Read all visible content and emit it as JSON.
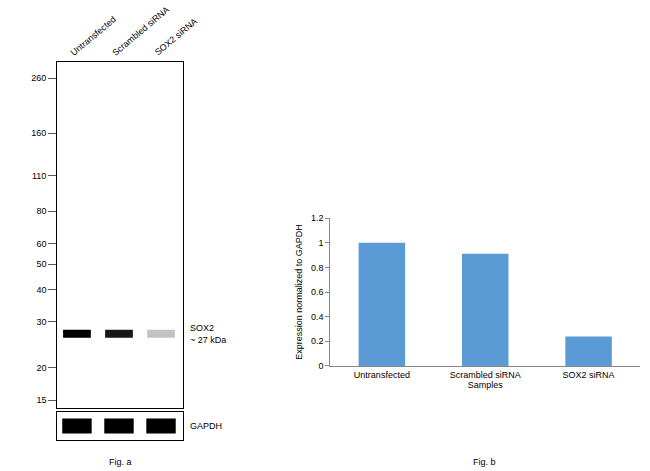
{
  "figure_a": {
    "type": "western_blot",
    "caption": "Fig. a",
    "lanes": [
      "Untransfected",
      "Scrambled siRNA",
      "SOX2 siRNA"
    ],
    "log": "y",
    "ylim": [
      14,
      300
    ],
    "yticks": [
      260,
      160,
      110,
      80,
      60,
      50,
      40,
      30,
      20,
      15
    ],
    "band_kda": 27,
    "band_label": [
      "SOX2",
      "~ 27 kDa"
    ],
    "loading_control": "GAPDH"
  },
  "chart_data": {
    "type": "bar",
    "caption": "Fig. b",
    "categories": [
      "Untransfected",
      "Scrambled siRNA",
      "SOX2 siRNA"
    ],
    "values": [
      1,
      0.91,
      0.24
    ],
    "color": "#5b9bd5",
    "xlabel": "Samples",
    "ylabel": "Expression normalized to GAPDH",
    "ylim": [
      0,
      1.2
    ],
    "yticks": [
      0,
      0.2,
      0.4,
      0.6,
      0.8,
      1,
      1.2
    ],
    "grid": false
  }
}
